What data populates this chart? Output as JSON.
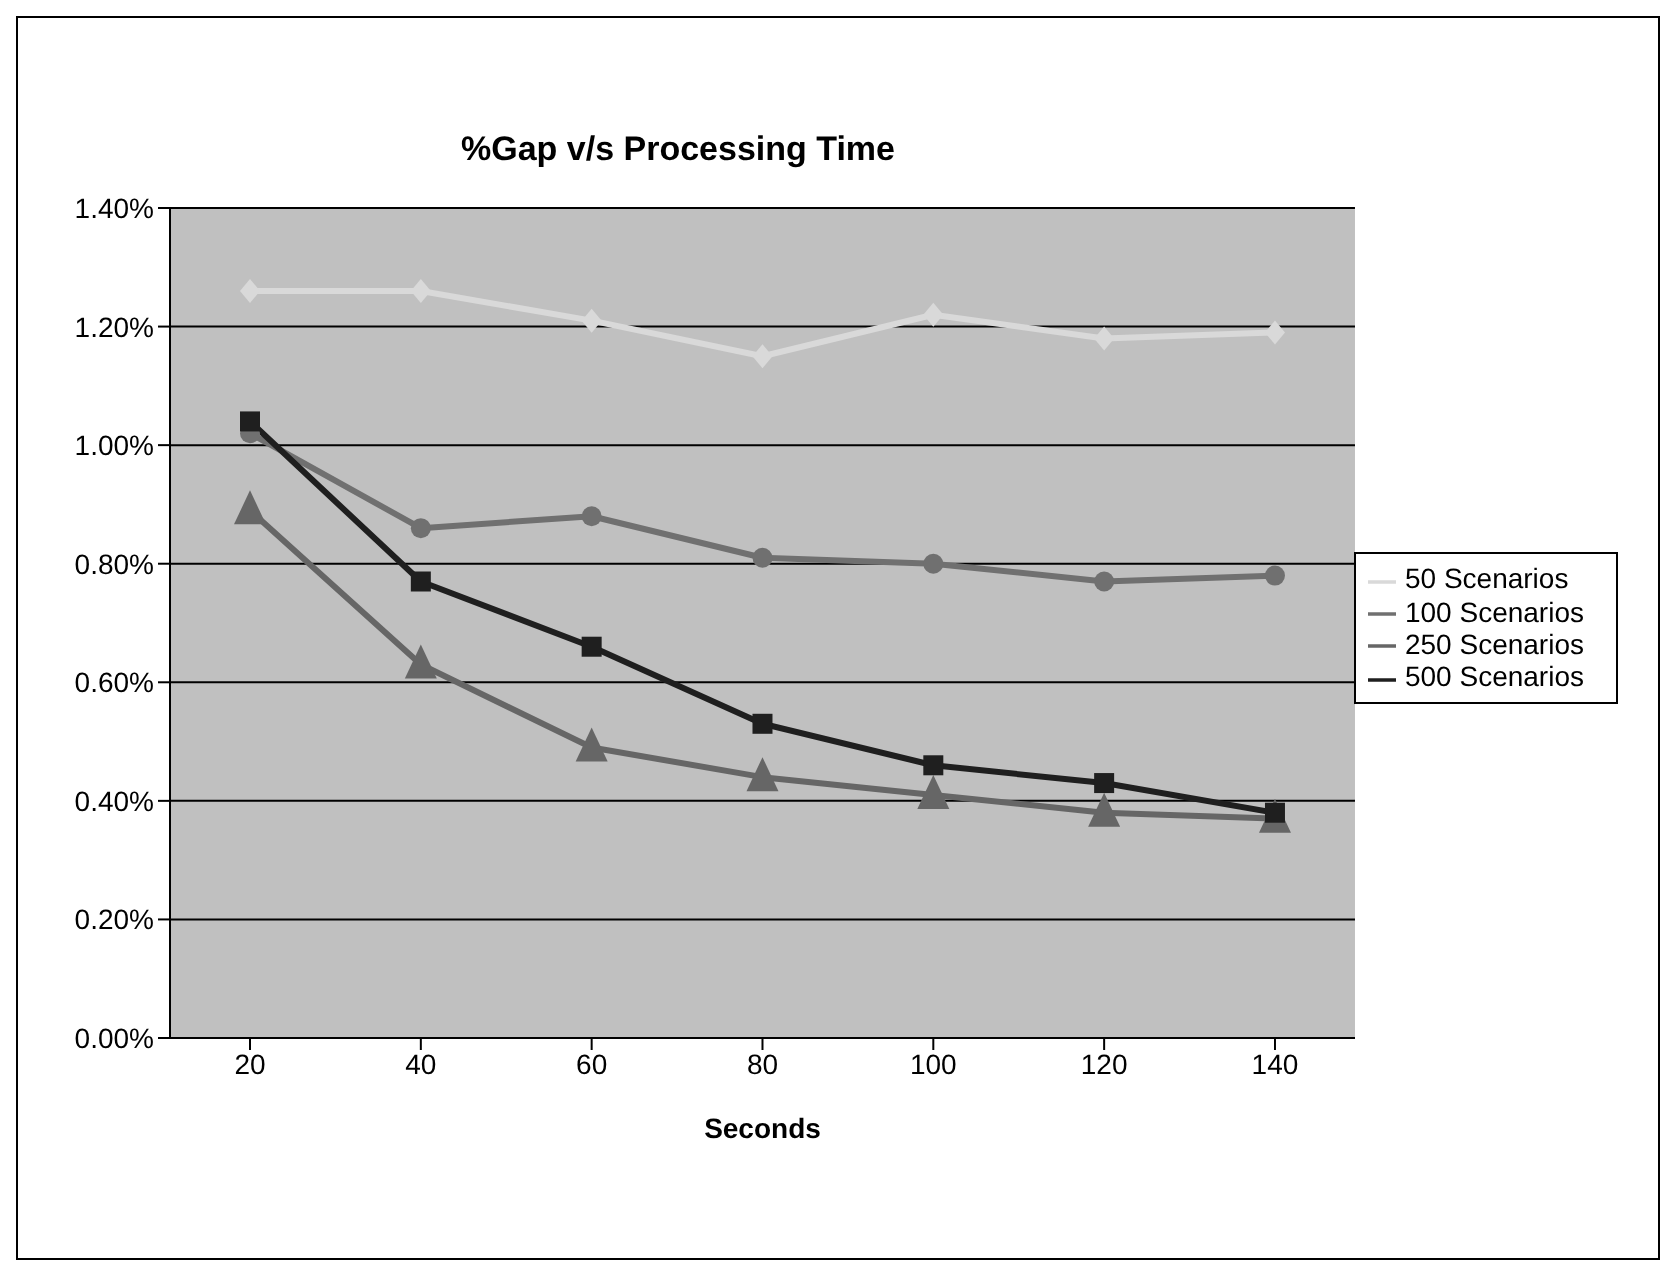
{
  "chart_data": {
    "type": "line",
    "title": "%Gap v/s Processing Time",
    "xlabel": "Seconds",
    "categories": [
      "20",
      "40",
      "60",
      "80",
      "100",
      "120",
      "140"
    ],
    "series": [
      {
        "name": "50 Scenarios",
        "color": "#d9d9d9",
        "marker": "diamond",
        "values": [
          1.26,
          1.26,
          1.21,
          1.15,
          1.22,
          1.18,
          1.19
        ]
      },
      {
        "name": "100 Scenarios",
        "color": "#707070",
        "marker": "circle",
        "values": [
          1.02,
          0.86,
          0.88,
          0.81,
          0.8,
          0.77,
          0.78
        ]
      },
      {
        "name": "250 Scenarios",
        "color": "#666666",
        "marker": "triangle",
        "values": [
          0.89,
          0.63,
          0.49,
          0.44,
          0.41,
          0.38,
          0.37
        ]
      },
      {
        "name": "500 Scenarios",
        "color": "#1f1f1f",
        "marker": "square",
        "values": [
          1.04,
          0.77,
          0.66,
          0.53,
          0.46,
          0.43,
          0.38
        ]
      }
    ],
    "ylim": [
      0,
      1.4
    ],
    "yticks": [
      {
        "value": 0,
        "label": "0.00%"
      },
      {
        "value": 0.2,
        "label": "0.20%"
      },
      {
        "value": 0.4,
        "label": "0.40%"
      },
      {
        "value": 0.6,
        "label": "0.60%"
      },
      {
        "value": 0.8,
        "label": "0.80%"
      },
      {
        "value": 1,
        "label": "1.00%"
      },
      {
        "value": 1.2,
        "label": "1.20%"
      },
      {
        "value": 1.4,
        "label": "1.40%"
      }
    ],
    "grid": "y",
    "legend": "right"
  }
}
